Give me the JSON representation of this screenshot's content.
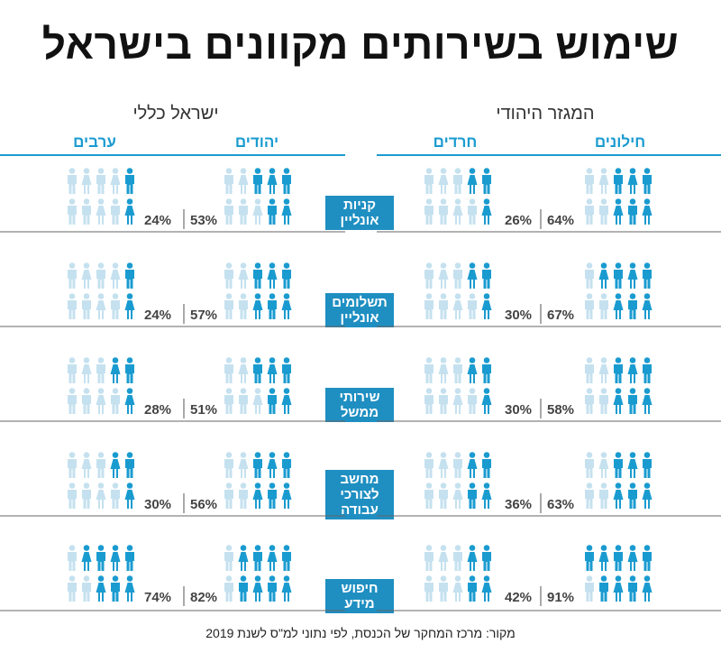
{
  "title": "שימוש בשירותים מקוונים בישראל",
  "source": "מקור: מרכז המחקר של הכנסת, לפי נתוני למ\"ס לשנת 2019",
  "groups": {
    "jewish_sector": "המגזר היהודי",
    "israel_total": "ישראל כללי"
  },
  "columns": {
    "secular": "חילונים",
    "haredi": "חרדים",
    "jews": "יהודים",
    "arabs": "ערבים"
  },
  "colors": {
    "accent": "#1a9bd0",
    "filled": "#1a9bd0",
    "empty": "#c5e1ef",
    "category_bg": "#1f8fc2"
  },
  "chart_data": {
    "type": "table",
    "title": "שימוש בשירותים מקוונים בישראל",
    "unit": "%",
    "series": [
      {
        "name": "חילונים",
        "values": [
          64,
          67,
          58,
          63,
          91
        ]
      },
      {
        "name": "חרדים",
        "values": [
          26,
          30,
          30,
          36,
          42
        ]
      },
      {
        "name": "יהודים",
        "values": [
          53,
          57,
          51,
          56,
          82
        ]
      },
      {
        "name": "ערבים",
        "values": [
          24,
          24,
          28,
          30,
          74
        ]
      }
    ],
    "categories": [
      {
        "lines": [
          "קניות",
          "אונליין"
        ]
      },
      {
        "lines": [
          "תשלומים",
          "אונליין"
        ]
      },
      {
        "lines": [
          "שירותי",
          "ממשל"
        ]
      },
      {
        "lines": [
          "מחשב",
          "לצורכי",
          "עבודה"
        ]
      },
      {
        "lines": [
          "חיפוש",
          "מידע"
        ]
      }
    ],
    "percent_labels": [
      [
        "64%",
        "26%",
        "53%",
        "24%"
      ],
      [
        "67%",
        "30%",
        "57%",
        "24%"
      ],
      [
        "58%",
        "30%",
        "51%",
        "28%"
      ],
      [
        "63%",
        "36%",
        "56%",
        "30%"
      ],
      [
        "91%",
        "42%",
        "82%",
        "74%"
      ]
    ]
  }
}
